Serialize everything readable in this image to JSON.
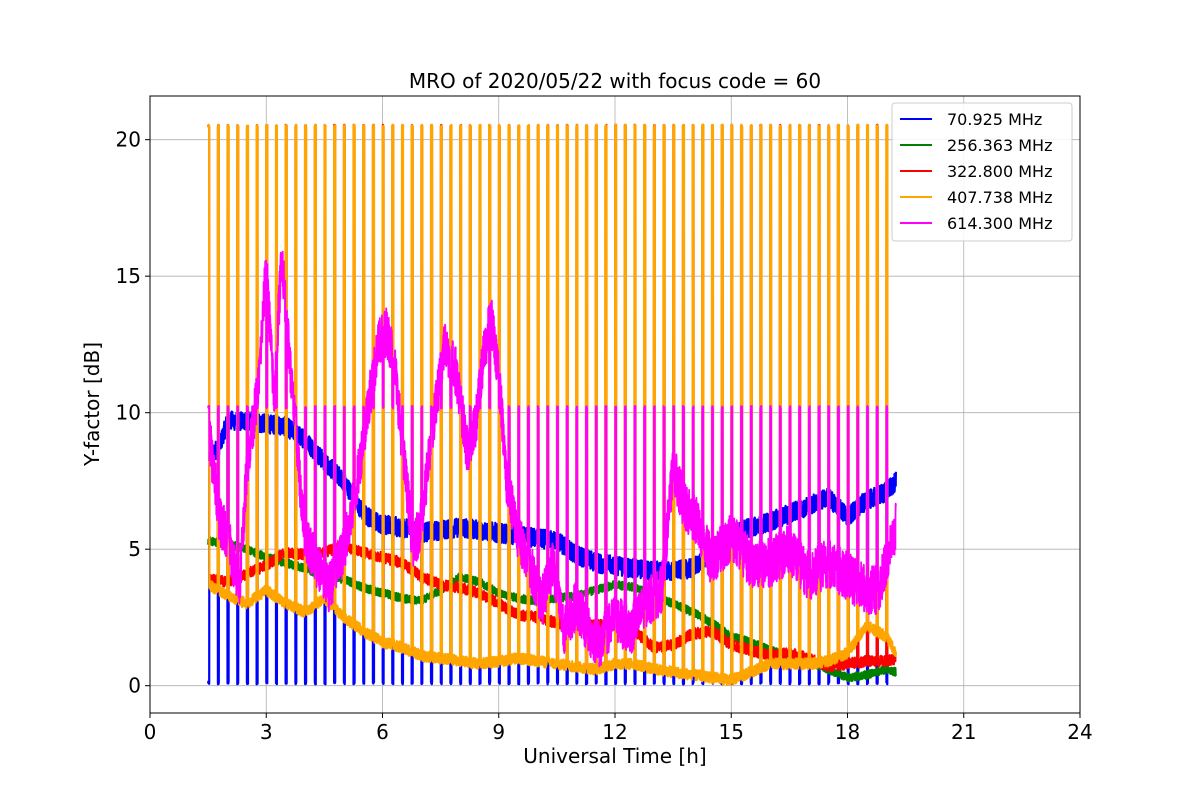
{
  "chart_data": {
    "type": "line",
    "title": "MRO of 2020/05/22 with focus code = 60",
    "xlabel": "Universal Time [h]",
    "ylabel": "Y-factor [dB]",
    "xlim": [
      0,
      24
    ],
    "ylim": [
      -1,
      21.6
    ],
    "xticks": [
      "0",
      "3",
      "6",
      "9",
      "12",
      "15",
      "18",
      "21",
      "24"
    ],
    "yticks": [
      "0",
      "5",
      "10",
      "15",
      "20"
    ],
    "grid": true,
    "legend_position": "top-right",
    "calibration_pulses": {
      "start_h": 1.5,
      "period_h": 0.25,
      "count": 71,
      "description_values": {
        "orange_red_top_db": 20.5,
        "magenta_top_db": 10.2,
        "blue_bottom_db": 0.1
      }
    },
    "series": [
      {
        "name": " 70.925 MHz",
        "color": "#0000ff",
        "x": [
          1.5,
          1.8,
          2.0,
          2.5,
          3.0,
          3.5,
          4.0,
          4.5,
          5.0,
          5.5,
          6.0,
          6.5,
          7.0,
          7.5,
          8.0,
          8.5,
          9.0,
          9.5,
          10.0,
          10.5,
          11.0,
          11.5,
          12.0,
          12.5,
          13.0,
          13.5,
          14.0,
          14.5,
          15.0,
          15.5,
          16.0,
          16.5,
          17.0,
          17.5,
          18.0,
          18.5,
          19.0,
          19.25
        ],
        "y": [
          8.3,
          8.8,
          9.7,
          9.7,
          9.6,
          9.5,
          9.0,
          8.2,
          7.5,
          6.3,
          5.9,
          5.8,
          5.6,
          5.7,
          5.8,
          5.7,
          5.6,
          5.5,
          5.4,
          5.3,
          4.8,
          4.5,
          4.4,
          4.3,
          4.2,
          4.2,
          4.3,
          4.9,
          5.5,
          5.8,
          6.0,
          6.3,
          6.6,
          6.9,
          6.2,
          6.8,
          7.1,
          7.5
        ]
      },
      {
        "name": "256.363 MHz",
        "color": "#008000",
        "x": [
          1.5,
          2.0,
          2.5,
          3.0,
          3.5,
          4.0,
          4.5,
          5.0,
          5.5,
          6.0,
          6.5,
          7.0,
          7.5,
          8.0,
          8.5,
          9.0,
          9.5,
          10.0,
          10.5,
          11.0,
          11.5,
          12.0,
          12.5,
          13.0,
          13.5,
          14.0,
          14.5,
          15.0,
          15.5,
          16.0,
          16.5,
          17.0,
          17.5,
          18.0,
          18.5,
          19.0,
          19.25
        ],
        "y": [
          5.3,
          5.2,
          5.0,
          4.7,
          4.5,
          4.3,
          4.0,
          3.9,
          3.6,
          3.4,
          3.2,
          3.1,
          3.5,
          4.0,
          3.8,
          3.4,
          3.2,
          3.1,
          3.2,
          3.3,
          3.5,
          3.7,
          3.6,
          3.3,
          3.0,
          2.7,
          2.3,
          1.8,
          1.6,
          1.3,
          1.1,
          0.9,
          0.6,
          0.3,
          0.4,
          0.6,
          0.5
        ]
      },
      {
        "name": "322.800 MHz",
        "color": "#ff0000",
        "x": [
          1.5,
          2.0,
          2.5,
          3.0,
          3.5,
          4.0,
          4.5,
          5.0,
          5.5,
          6.0,
          6.5,
          7.0,
          7.5,
          8.0,
          8.5,
          9.0,
          9.5,
          10.0,
          10.5,
          11.0,
          11.5,
          12.0,
          12.5,
          13.0,
          13.5,
          14.0,
          14.5,
          15.0,
          15.5,
          16.0,
          16.5,
          17.0,
          17.5,
          18.0,
          18.5,
          19.0,
          19.25
        ],
        "y": [
          3.9,
          3.8,
          4.1,
          4.4,
          4.9,
          4.8,
          4.9,
          5.1,
          4.9,
          4.7,
          4.5,
          4.0,
          3.7,
          3.6,
          3.4,
          3.0,
          2.6,
          2.5,
          2.3,
          2.2,
          2.2,
          2.3,
          2.0,
          1.4,
          1.5,
          1.9,
          2.0,
          1.5,
          1.3,
          1.1,
          1.2,
          1.0,
          0.7,
          0.8,
          0.9,
          0.9,
          1.0
        ]
      },
      {
        "name": "407.738 MHz",
        "color": "#ffa500",
        "x": [
          1.5,
          2.0,
          2.5,
          3.0,
          3.5,
          4.0,
          4.5,
          5.0,
          5.5,
          6.0,
          6.5,
          7.0,
          7.5,
          8.0,
          8.5,
          9.0,
          9.5,
          10.0,
          10.5,
          11.0,
          11.5,
          12.0,
          12.5,
          13.0,
          13.5,
          14.0,
          14.5,
          15.0,
          15.5,
          16.0,
          16.5,
          17.0,
          17.5,
          18.0,
          18.5,
          19.0,
          19.25
        ],
        "y": [
          3.7,
          3.3,
          3.0,
          3.5,
          3.0,
          2.7,
          3.2,
          2.5,
          2.0,
          1.6,
          1.4,
          1.1,
          1.0,
          0.9,
          0.8,
          0.9,
          1.0,
          0.9,
          0.8,
          0.7,
          0.6,
          0.8,
          0.8,
          0.6,
          0.5,
          0.4,
          0.3,
          0.2,
          0.5,
          0.8,
          0.8,
          0.8,
          0.9,
          1.2,
          2.2,
          1.8,
          1.2
        ]
      },
      {
        "name": "614.300 MHz",
        "color": "#ff00ff",
        "x": [
          1.5,
          1.8,
          2.0,
          2.3,
          2.5,
          2.8,
          3.0,
          3.2,
          3.4,
          3.6,
          3.8,
          4.0,
          4.3,
          4.6,
          5.0,
          5.3,
          5.6,
          5.9,
          6.1,
          6.3,
          6.5,
          6.8,
          7.0,
          7.3,
          7.6,
          7.9,
          8.2,
          8.4,
          8.6,
          8.8,
          9.0,
          9.2,
          9.5,
          9.8,
          10.1,
          10.4,
          10.7,
          11.0,
          11.3,
          11.6,
          12.0,
          12.4,
          12.8,
          13.2,
          13.5,
          13.8,
          14.1,
          14.5,
          15.0,
          15.5,
          16.0,
          16.5,
          17.0,
          17.5,
          18.0,
          18.5,
          18.8,
          19.0,
          19.25
        ],
        "y": [
          9.5,
          6.0,
          5.5,
          3.5,
          8.0,
          11.0,
          15.5,
          10.5,
          15.8,
          12.0,
          8.5,
          5.5,
          4.5,
          3.5,
          5.0,
          7.0,
          10.0,
          12.5,
          13.0,
          12.0,
          9.0,
          5.0,
          6.0,
          9.5,
          12.5,
          11.5,
          8.5,
          9.5,
          12.0,
          13.5,
          11.5,
          7.5,
          5.5,
          4.5,
          3.0,
          4.5,
          2.0,
          3.0,
          2.0,
          1.5,
          2.5,
          2.0,
          3.0,
          3.5,
          8.0,
          6.5,
          6.0,
          4.5,
          5.5,
          4.5,
          4.5,
          5.0,
          4.0,
          4.5,
          4.0,
          3.5,
          3.5,
          4.5,
          5.8
        ]
      }
    ]
  }
}
